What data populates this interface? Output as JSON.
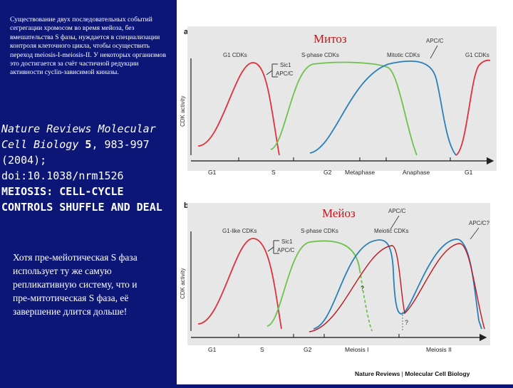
{
  "left": {
    "note_top": "Существование двух последовательных событий сегрегации хромосом во время мейоза, без вмешательства S фазы, нуждается в специализации контроля клеточного цикла, чтобы осуществить переход meiosis-I-meiosis-II. У некоторых организмов это достигается за счёт частичной редукции активности cyclin-зависимой киназы.",
    "citation": {
      "journal": "Nature Reviews Molecular Cell Biology",
      "volume": "5",
      "pages": ", 983-997",
      "year": "(2004);",
      "doi": "doi:10.1038/nrm1526",
      "article_title": "MEIOSIS: CELL-CYCLE CONTROLS SHUFFLE AND DEAL"
    },
    "note_bottom": "Хотя пре-мейотическая S фаза использует ту же самую репликативную систему, что и пре-митотическая S фаза, её завершение длится дольше!"
  },
  "figure": {
    "panel_a": {
      "letter": "a",
      "title": "Митоз",
      "y_label": "CDK activity",
      "top_labels": {
        "g1_cdks": "G1 CDKs",
        "s_phase_cdks": "S-phase CDKs",
        "mitotic_cdks": "Mitotic CDKs",
        "apc": "APC/C",
        "g1_cdks_right": "G1 CDKs"
      },
      "inhibitor_labels": {
        "sic1": "Sic1",
        "apc_c": "APC/C"
      },
      "phases": [
        "G1",
        "S",
        "G2",
        "Metaphase",
        "Anaphase",
        "G1"
      ],
      "colors": {
        "g1": "#e0303b",
        "s": "#6cc24a",
        "mitotic": "#2a7fb8"
      }
    },
    "panel_b": {
      "letter": "b",
      "title": "Мейоз",
      "y_label": "CDK activity",
      "top_labels": {
        "g1_cdks": "G1-like CDKs",
        "s_phase_cdks": "S-phase CDKs",
        "meiotic_cdks": "Meiotic CDKs",
        "apc_mid": "APC/C",
        "apc_right": "APC/C?"
      },
      "inhibitor_labels": {
        "sic1": "Sic1",
        "apc_c": "APC/C"
      },
      "question_marks": [
        "?",
        "?"
      ],
      "phases": [
        "G1",
        "S",
        "G2",
        "Meiosis I",
        "Meiosis II"
      ]
    },
    "credit": {
      "publisher": "Nature Reviews",
      "separator": " | ",
      "journal": "Molecular Cell Biology"
    }
  }
}
